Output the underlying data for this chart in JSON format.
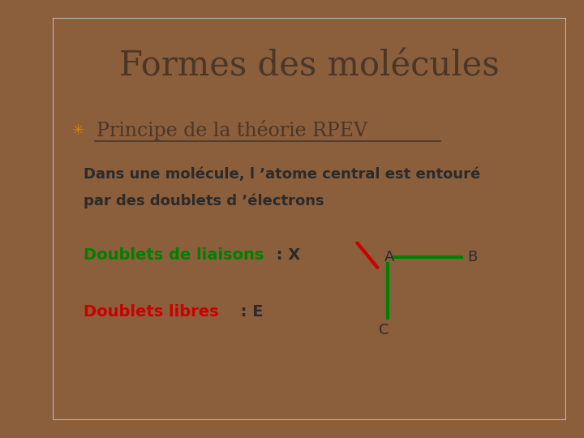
{
  "title": "Formes des molécules",
  "title_color": "#4a3728",
  "title_fontsize": 30,
  "outer_bg": "#8B5E3C",
  "bg_color": "#ffffff",
  "border_color": "#bbbbbb",
  "subtitle": "Principe de la théorie RPEV",
  "subtitle_color": "#4a3728",
  "subtitle_fontsize": 17,
  "bullet_color": "#cc8800",
  "body_text1": "Dans une molécule, l ’atome central est entouré",
  "body_text2": "par des doublets d ’électrons",
  "body_color": "#2b2b2b",
  "body_fontsize": 13,
  "label_liaisons_green": "Doublets de liaisons",
  "label_liaisons_black": " : X",
  "green_color": "#008000",
  "label_libres_red": "Doublets libres",
  "label_libres_black": " : E",
  "red_color": "#cc0000",
  "black_color": "#2b2b2b",
  "label_fontsize": 14
}
